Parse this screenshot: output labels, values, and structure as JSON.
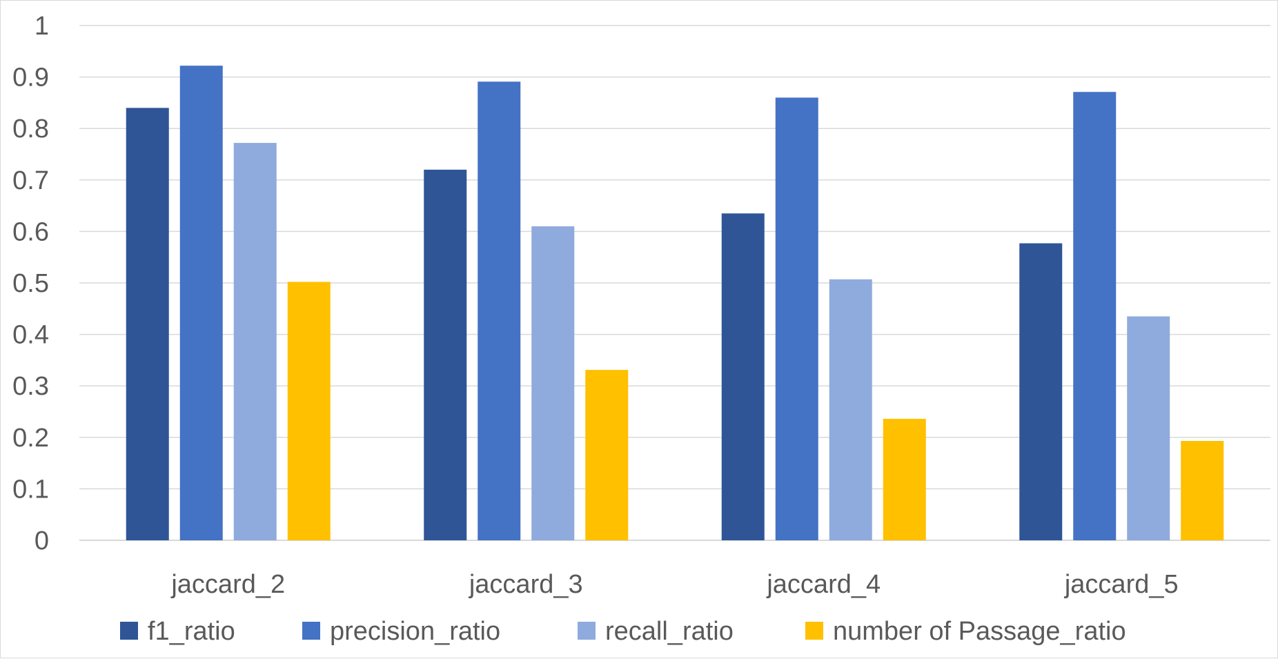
{
  "chart_data": {
    "type": "bar",
    "categories": [
      "jaccard_2",
      "jaccard_3",
      "jaccard_4",
      "jaccard_5"
    ],
    "series": [
      {
        "name": "f1_ratio",
        "color": "#2f5597",
        "values": [
          0.84,
          0.72,
          0.635,
          0.577
        ]
      },
      {
        "name": "precision_ratio",
        "color": "#4472c4",
        "values": [
          0.922,
          0.891,
          0.86,
          0.871
        ]
      },
      {
        "name": "recall_ratio",
        "color": "#8faadc",
        "values": [
          0.772,
          0.61,
          0.507,
          0.435
        ]
      },
      {
        "name": "number of Passage_ratio",
        "color": "#ffc000",
        "values": [
          0.502,
          0.331,
          0.236,
          0.193
        ]
      }
    ],
    "ylim": [
      0,
      1
    ],
    "yticks": [
      "0",
      "0.1",
      "0.2",
      "0.3",
      "0.4",
      "0.5",
      "0.6",
      "0.7",
      "0.8",
      "0.9",
      "1"
    ],
    "grid": true,
    "legend_position": "bottom"
  }
}
